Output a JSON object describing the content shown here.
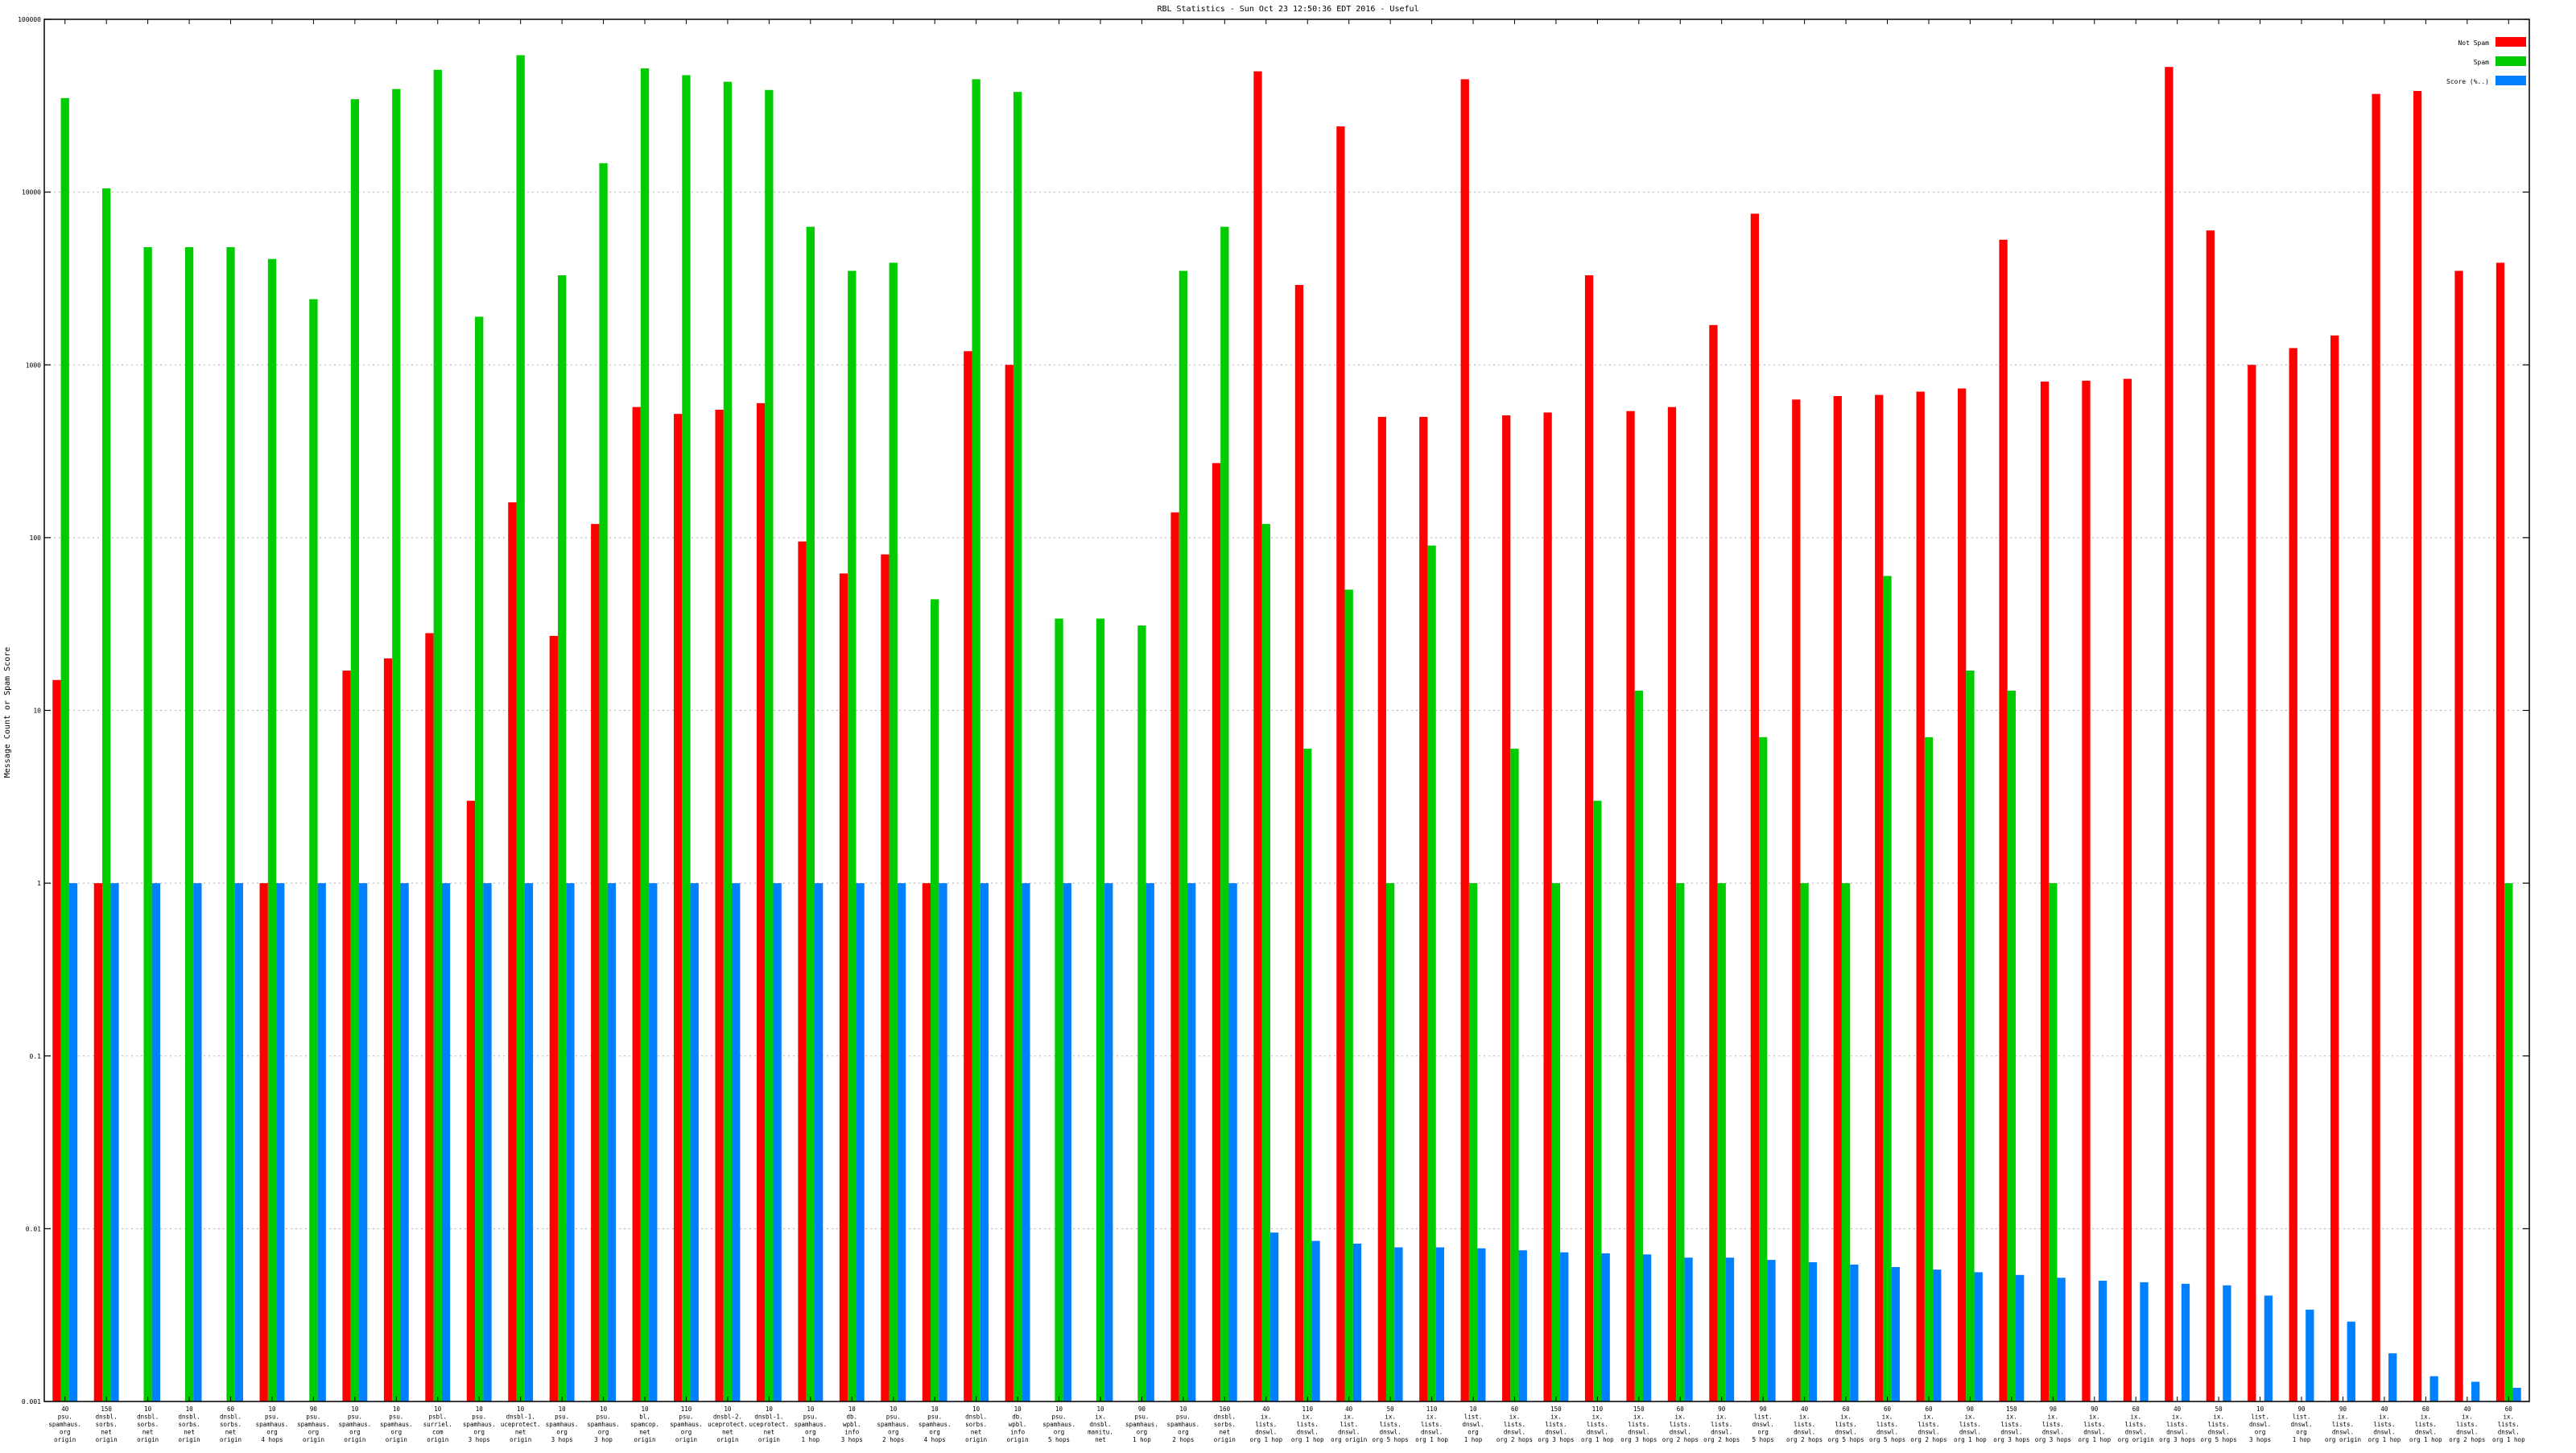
{
  "chart_data": {
    "type": "bar",
    "title": "RBL Statistics - Sun Oct 23 12:50:36 EDT 2016 - Useful",
    "ylabel": "Message Count or Spam Score",
    "xlabel": "",
    "y_scale": "log",
    "ylim": [
      0.001,
      100000
    ],
    "y_ticks": [
      {
        "value": 0.001,
        "label": "0.001"
      },
      {
        "value": 0.01,
        "label": "0.01"
      },
      {
        "value": 0.1,
        "label": "0.1"
      },
      {
        "value": 1,
        "label": "1"
      },
      {
        "value": 10,
        "label": "10"
      },
      {
        "value": 100,
        "label": "100"
      },
      {
        "value": 1000,
        "label": "1000"
      },
      {
        "value": 10000,
        "label": "10000"
      },
      {
        "value": 100000,
        "label": "100000"
      }
    ],
    "grid": true,
    "legend_position": "top-right",
    "categories": [
      [
        "40",
        "psu.",
        "spamhaus.",
        "org",
        "origin"
      ],
      [
        "150",
        "dnsbl.",
        "sorbs.",
        "net",
        "origin"
      ],
      [
        "10",
        "dnsbl.",
        "sorbs.",
        "net",
        "origin"
      ],
      [
        "10",
        "dnsbl.",
        "sorbs.",
        "net",
        "origin"
      ],
      [
        "60",
        "dnsbl.",
        "sorbs.",
        "net",
        "origin"
      ],
      [
        "10",
        "psu.",
        "spamhaus.",
        "org",
        "4 hops"
      ],
      [
        "90",
        "psu.",
        "spamhaus.",
        "org",
        "origin"
      ],
      [
        "10",
        "psu.",
        "spamhaus.",
        "org",
        "origin"
      ],
      [
        "10",
        "psu.",
        "spamhaus.",
        "org",
        "origin"
      ],
      [
        "10",
        "psbl.",
        "surriel.",
        "com",
        "origin"
      ],
      [
        "10",
        "psu.",
        "spamhaus.",
        "org",
        "3 hops"
      ],
      [
        "10",
        "dnsbl-1.",
        "uceprotect.",
        "net",
        "origin"
      ],
      [
        "10",
        "psu.",
        "spamhaus.",
        "org",
        "3 hops"
      ],
      [
        "10",
        "psu.",
        "spamhaus.",
        "org",
        "3 hop"
      ],
      [
        "10",
        "bl.",
        "spamcop.",
        "net",
        "origin"
      ],
      [
        "110",
        "psu.",
        "spamhaus.",
        "org",
        "origin"
      ],
      [
        "10",
        "dnsbl-2.",
        "uceprotect.",
        "net",
        "origin"
      ],
      [
        "10",
        "dnsbl-1.",
        "uceprotect.",
        "net",
        "origin"
      ],
      [
        "10",
        "psu.",
        "spamhaus.",
        "org",
        "1 hop"
      ],
      [
        "10",
        "db.",
        "wpbl.",
        "info",
        "3 hops"
      ],
      [
        "10",
        "psu.",
        "spamhaus.",
        "org",
        "2 hops"
      ],
      [
        "10",
        "psu.",
        "spamhaus.",
        "org",
        "4 hops"
      ],
      [
        "10",
        "dnsbl.",
        "sorbs.",
        "net",
        "origin"
      ],
      [
        "10",
        "db.",
        "wpbl.",
        "info",
        "origin"
      ],
      [
        "10",
        "psu.",
        "spamhaus.",
        "org",
        "5 hops"
      ],
      [
        "10",
        "ix.",
        "dnsbl.",
        "manitu.",
        "net"
      ],
      [
        "90",
        "psu.",
        "spamhaus.",
        "org",
        "1 hop"
      ],
      [
        "10",
        "psu.",
        "spamhaus.",
        "org",
        "2 hops"
      ],
      [
        "160",
        "dnsbl.",
        "sorbs.",
        "net",
        "origin"
      ],
      [
        "40",
        "ix.",
        "lists.",
        "dnswl.",
        "org 1 hop"
      ],
      [
        "110",
        "ix.",
        "lists.",
        "dnswl.",
        "org 1 hop"
      ],
      [
        "40",
        "ix.",
        "list.",
        "dnswl.",
        "org origin"
      ],
      [
        "50",
        "ix.",
        "lists.",
        "dnswl.",
        "org 5 hops"
      ],
      [
        "110",
        "ix.",
        "lists.",
        "dnswl.",
        "org 1 hop"
      ],
      [
        "10",
        "list.",
        "dnswl.",
        "org",
        "1 hop"
      ],
      [
        "60",
        "ix.",
        "lists.",
        "dnswl.",
        "org 2 hops"
      ],
      [
        "150",
        "ix.",
        "lists.",
        "dnswl.",
        "org 3 hops"
      ],
      [
        "110",
        "ix.",
        "lists.",
        "dnswl.",
        "org 1 hop"
      ],
      [
        "150",
        "ix.",
        "lists.",
        "dnswl.",
        "org 3 hops"
      ],
      [
        "60",
        "ix.",
        "lists.",
        "dnswl.",
        "org 2 hops"
      ],
      [
        "90",
        "ix.",
        "lists.",
        "dnswl.",
        "org 2 hops"
      ],
      [
        "90",
        "list.",
        "dnswl.",
        "org",
        "5 hops"
      ],
      [
        "40",
        "ix.",
        "lists.",
        "dnswl.",
        "org 2 hops"
      ],
      [
        "60",
        "ix.",
        "lists.",
        "dnswl.",
        "org 5 hops"
      ],
      [
        "60",
        "ix.",
        "lists.",
        "dnswl.",
        "org 5 hops"
      ],
      [
        "60",
        "ix.",
        "lists.",
        "dnswl.",
        "org 2 hops"
      ],
      [
        "90",
        "ix.",
        "lists.",
        "dnswl.",
        "org 1 hop"
      ],
      [
        "150",
        "ix.",
        "lists.",
        "dnswl.",
        "org 3 hops"
      ],
      [
        "90",
        "ix.",
        "lists.",
        "dnswl.",
        "org 3 hops"
      ],
      [
        "90",
        "ix.",
        "lists.",
        "dnswl.",
        "org 1 hop"
      ],
      [
        "60",
        "ix.",
        "lists.",
        "dnswl.",
        "org origin"
      ],
      [
        "40",
        "ix.",
        "lists.",
        "dnswl.",
        "org 3 hops"
      ],
      [
        "50",
        "ix.",
        "lists.",
        "dnswl.",
        "org 5 hops"
      ],
      [
        "10",
        "list.",
        "dnswl.",
        "org",
        "3 hops"
      ],
      [
        "90",
        "list.",
        "dnswl.",
        "org",
        "1 hop"
      ],
      [
        "90",
        "ix.",
        "lists.",
        "dnswl.",
        "org origin"
      ],
      [
        "40",
        "ix.",
        "lists.",
        "dnswl.",
        "org 1 hop"
      ],
      [
        "60",
        "ix.",
        "lists.",
        "dnswl.",
        "org 1 hop"
      ],
      [
        "40",
        "ix.",
        "lists.",
        "dnswl.",
        "org 2 hops"
      ],
      [
        "60",
        "ix.",
        "lists.",
        "dnswl.",
        "org 1 hop"
      ]
    ],
    "series": [
      {
        "name": "Not Spam",
        "color": "#ff0000",
        "values": [
          15,
          1,
          null,
          null,
          null,
          1,
          null,
          17,
          20,
          28,
          3,
          160,
          27,
          120,
          570,
          520,
          550,
          600,
          95,
          62,
          80,
          1,
          1200,
          1000,
          null,
          null,
          null,
          140,
          270,
          50000,
          2900,
          24000,
          500,
          500,
          45000,
          510,
          530,
          3300,
          540,
          570,
          1700,
          7500,
          630,
          660,
          670,
          700,
          730,
          5300,
          800,
          810,
          830,
          53000,
          6000,
          1000,
          1250,
          1480,
          37000,
          38500,
          3500,
          3900
        ]
      },
      {
        "name": "Spam",
        "color": "#00cc00",
        "values": [
          35000,
          10500,
          4800,
          4800,
          4800,
          4100,
          2400,
          34500,
          39500,
          51000,
          1900,
          62000,
          3300,
          14700,
          52000,
          47500,
          43500,
          39000,
          6300,
          3500,
          3900,
          44,
          45000,
          38000,
          34,
          34,
          31,
          3500,
          6300,
          120,
          6,
          50,
          1,
          90,
          1,
          6,
          1,
          3,
          13,
          1,
          1,
          7,
          1,
          1,
          60,
          7,
          17,
          13,
          1,
          null,
          null,
          null,
          null,
          null,
          null,
          null,
          null,
          null,
          null,
          1
        ]
      },
      {
        "name": "Score (%..)",
        "color": "#0080ff",
        "values": [
          1,
          1,
          1,
          1,
          1,
          1,
          1,
          1,
          1,
          1,
          1,
          1,
          1,
          1,
          1,
          1,
          1,
          1,
          1,
          1,
          1,
          1,
          1,
          1,
          1,
          1,
          1,
          1,
          1,
          0.0095,
          0.0085,
          0.0082,
          0.0078,
          0.0078,
          0.0077,
          0.0075,
          0.0073,
          0.0072,
          0.0071,
          0.0068,
          0.0068,
          0.0066,
          0.0064,
          0.0062,
          0.006,
          0.0058,
          0.0056,
          0.0054,
          0.0052,
          0.005,
          0.0049,
          0.0048,
          0.0047,
          0.0041,
          0.0034,
          0.0029,
          0.0019,
          0.0014,
          0.0013,
          0.0012
        ]
      }
    ]
  }
}
